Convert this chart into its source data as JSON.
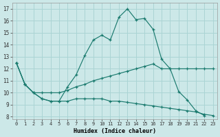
{
  "xlabel": "Humidex (Indice chaleur)",
  "bg_color": "#cce8e8",
  "line_color": "#1a7a6e",
  "grid_color": "#aad4d4",
  "x_ticks": [
    0,
    1,
    2,
    3,
    4,
    5,
    6,
    7,
    8,
    9,
    10,
    11,
    12,
    13,
    14,
    15,
    16,
    17,
    18,
    19,
    20,
    21,
    22,
    23
  ],
  "y_ticks": [
    8,
    9,
    10,
    11,
    12,
    13,
    14,
    15,
    16,
    17
  ],
  "ylim": [
    7.8,
    17.5
  ],
  "xlim": [
    -0.5,
    23.5
  ],
  "series": [
    [
      12.5,
      10.7,
      10.0,
      9.5,
      9.3,
      9.3,
      10.5,
      11.5,
      13.1,
      14.4,
      14.8,
      14.4,
      16.3,
      17.0,
      16.1,
      16.2,
      15.3,
      12.8,
      12.0,
      10.1,
      9.4,
      8.5,
      8.1,
      null
    ],
    [
      12.5,
      10.7,
      10.0,
      10.0,
      10.0,
      10.0,
      10.2,
      10.5,
      10.7,
      11.0,
      11.2,
      11.4,
      11.6,
      11.8,
      12.0,
      12.2,
      12.4,
      12.0,
      12.0,
      12.0,
      12.0,
      12.0,
      12.0,
      12.0
    ],
    [
      12.5,
      10.7,
      10.0,
      9.5,
      9.3,
      9.3,
      9.3,
      9.5,
      9.5,
      9.5,
      9.5,
      9.3,
      9.3,
      9.2,
      9.1,
      9.0,
      8.9,
      8.8,
      8.7,
      8.6,
      8.5,
      8.4,
      8.2,
      8.1
    ]
  ]
}
